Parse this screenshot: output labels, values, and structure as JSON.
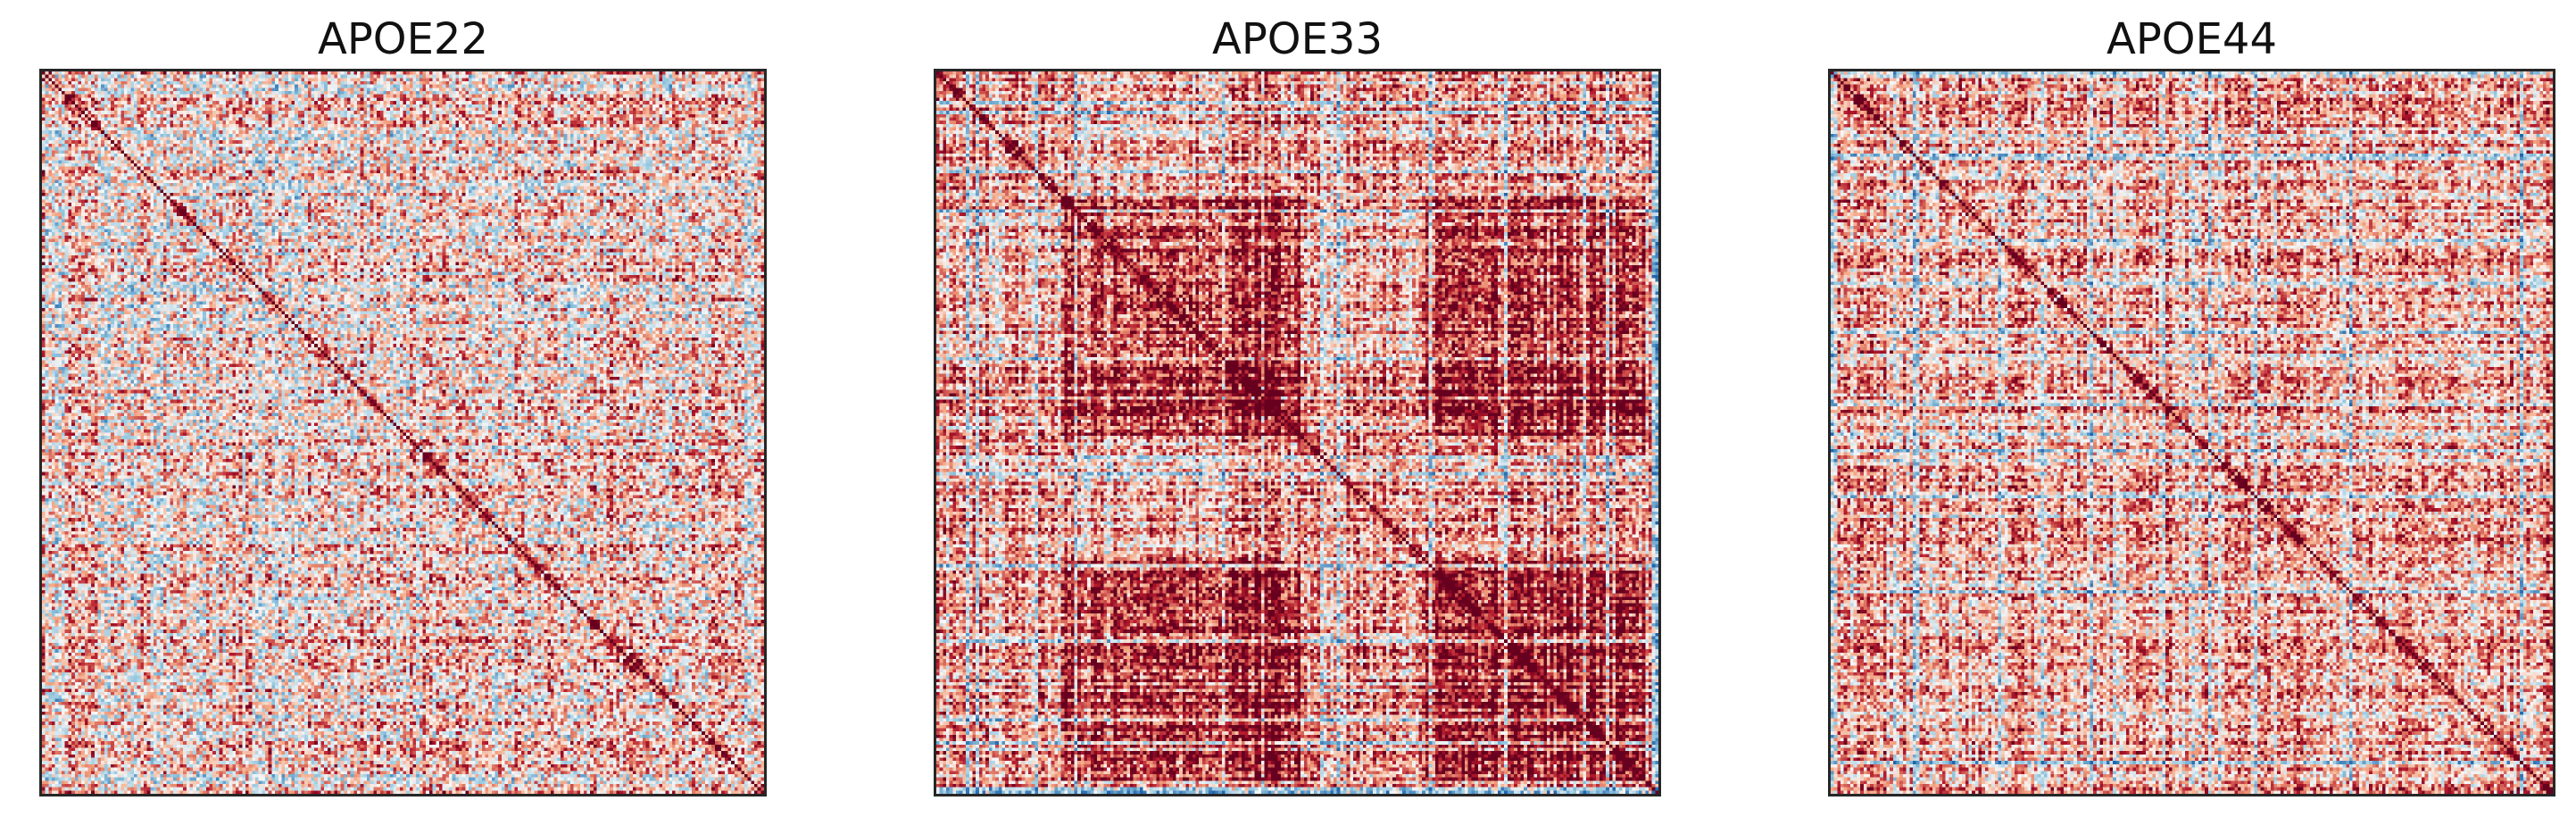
{
  "chart_data": [
    {
      "type": "heatmap",
      "title": "APOE22",
      "colormap": "RdBu_r",
      "colors": {
        "low": "#2166ac",
        "mid": "#f7f7f7",
        "high": "#b2182b",
        "max": "#67001f"
      },
      "xticks": "hidden",
      "yticks": "hidden",
      "grid": false,
      "diagonal": "high",
      "overall_level": "mixed, mostly light red and light blue"
    },
    {
      "type": "heatmap",
      "title": "APOE33",
      "colormap": "RdBu_r",
      "colors": {
        "low": "#2166ac",
        "mid": "#f7f7f7",
        "high": "#b2182b",
        "max": "#67001f"
      },
      "xticks": "hidden",
      "yticks": "hidden",
      "grid": false,
      "diagonal": "high",
      "overall_level": "strong red with dense block structure"
    },
    {
      "type": "heatmap",
      "title": "APOE44",
      "colormap": "RdBu_r",
      "colors": {
        "low": "#2166ac",
        "mid": "#f7f7f7",
        "high": "#b2182b",
        "max": "#67001f"
      },
      "xticks": "hidden",
      "yticks": "hidden",
      "grid": false,
      "diagonal": "high",
      "overall_level": "predominantly red with scattered blue stripes"
    }
  ]
}
